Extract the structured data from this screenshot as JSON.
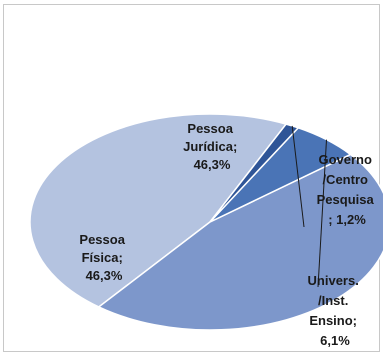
{
  "chart_data": {
    "type": "pie",
    "title": "",
    "start_angle_deg": 65,
    "direction": "counterclockwise",
    "slices": [
      {
        "name": "Pessoa Jurídica",
        "value": 46.3,
        "color": "#b4c3e0",
        "label_lines": [
          "Pessoa",
          "Jurídica;",
          "46,3%"
        ]
      },
      {
        "name": "Pessoa Física",
        "value": 46.3,
        "color": "#7d97cb",
        "label_lines": [
          "Pessoa",
          "Física;",
          "46,3%"
        ]
      },
      {
        "name": "Univers./Inst. Ensino",
        "value": 6.1,
        "color": "#4a74b6",
        "label_lines": [
          "Univers.",
          "/Inst.",
          "Ensino;",
          "6,1%"
        ]
      },
      {
        "name": "Governo/Centro Pesquisa",
        "value": 1.2,
        "color": "#2f5597",
        "label_lines": [
          "Governo",
          "/Centro",
          "Pesquisa",
          "; 1,2%"
        ]
      }
    ]
  }
}
